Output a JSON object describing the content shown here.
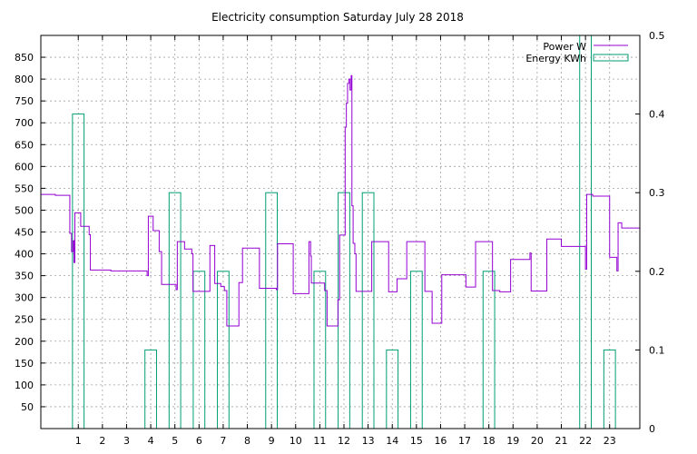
{
  "chart_data": {
    "type": "line",
    "title": "Electricity consumption Saturday July 28 2018",
    "grid": true,
    "legend_position": "top-right",
    "x_axis": {
      "range": [
        -0.55,
        24.25
      ],
      "ticks": [
        1,
        2,
        3,
        4,
        5,
        6,
        7,
        8,
        9,
        10,
        11,
        12,
        13,
        14,
        15,
        16,
        17,
        18,
        19,
        20,
        21,
        22,
        23
      ],
      "tick_labels": [
        "1",
        "2",
        "3",
        "4",
        "5",
        "6",
        "7",
        "8",
        "9",
        "10",
        "11",
        "12",
        "13",
        "14",
        "15",
        "16",
        "17",
        "18",
        "19",
        "20",
        "21",
        "22",
        "23"
      ]
    },
    "y_axis_left": {
      "range": [
        0,
        900
      ],
      "ticks": [
        50,
        100,
        150,
        200,
        250,
        300,
        350,
        400,
        450,
        500,
        550,
        600,
        650,
        700,
        750,
        800,
        850
      ],
      "tick_labels": [
        "50",
        "100",
        "150",
        "200",
        "250",
        "300",
        "350",
        "400",
        "450",
        "500",
        "550",
        "600",
        "650",
        "700",
        "750",
        "800",
        "850"
      ]
    },
    "y_axis_right": {
      "range": [
        0,
        0.5
      ],
      "ticks": [
        0,
        0.1,
        0.2,
        0.3,
        0.4,
        0.5
      ],
      "tick_labels": [
        "0",
        "0.1",
        "0.2",
        "0.3",
        "0.4",
        "0.5"
      ]
    },
    "series": [
      {
        "name": "Power W",
        "axis": "left",
        "style": "steps",
        "color": "#9400d3",
        "points": [
          [
            -0.55,
            536
          ],
          [
            0.05,
            536
          ],
          [
            0.05,
            534
          ],
          [
            0.65,
            534
          ],
          [
            0.65,
            447
          ],
          [
            0.72,
            447
          ],
          [
            0.72,
            405
          ],
          [
            0.78,
            405
          ],
          [
            0.78,
            430
          ],
          [
            0.82,
            430
          ],
          [
            0.82,
            380
          ],
          [
            0.86,
            380
          ],
          [
            0.86,
            494
          ],
          [
            1.1,
            494
          ],
          [
            1.1,
            463
          ],
          [
            1.45,
            463
          ],
          [
            1.45,
            444
          ],
          [
            1.5,
            444
          ],
          [
            1.5,
            363
          ],
          [
            2.35,
            363
          ],
          [
            2.35,
            361
          ],
          [
            3.85,
            361
          ],
          [
            3.85,
            350
          ],
          [
            3.9,
            350
          ],
          [
            3.9,
            486
          ],
          [
            4.1,
            486
          ],
          [
            4.1,
            453
          ],
          [
            4.35,
            453
          ],
          [
            4.35,
            405
          ],
          [
            4.45,
            405
          ],
          [
            4.45,
            330
          ],
          [
            5.05,
            330
          ],
          [
            5.05,
            318
          ],
          [
            5.1,
            318
          ],
          [
            5.1,
            428
          ],
          [
            5.4,
            428
          ],
          [
            5.4,
            411
          ],
          [
            5.7,
            411
          ],
          [
            5.7,
            400
          ],
          [
            5.75,
            400
          ],
          [
            5.75,
            314
          ],
          [
            6.45,
            314
          ],
          [
            6.45,
            419
          ],
          [
            6.65,
            419
          ],
          [
            6.65,
            332
          ],
          [
            6.9,
            332
          ],
          [
            6.9,
            325
          ],
          [
            7.05,
            325
          ],
          [
            7.05,
            316
          ],
          [
            7.15,
            316
          ],
          [
            7.15,
            235
          ],
          [
            7.65,
            235
          ],
          [
            7.65,
            334
          ],
          [
            7.8,
            334
          ],
          [
            7.8,
            413
          ],
          [
            8.5,
            413
          ],
          [
            8.5,
            321
          ],
          [
            9.2,
            321
          ],
          [
            9.2,
            318
          ],
          [
            9.25,
            318
          ],
          [
            9.25,
            423
          ],
          [
            9.9,
            423
          ],
          [
            9.9,
            309
          ],
          [
            10.55,
            309
          ],
          [
            10.55,
            428
          ],
          [
            10.62,
            428
          ],
          [
            10.62,
            395
          ],
          [
            10.65,
            395
          ],
          [
            10.65,
            333
          ],
          [
            11.2,
            333
          ],
          [
            11.2,
            316
          ],
          [
            11.3,
            316
          ],
          [
            11.3,
            235
          ],
          [
            11.75,
            235
          ],
          [
            11.75,
            295
          ],
          [
            11.82,
            295
          ],
          [
            11.82,
            443
          ],
          [
            12.05,
            443
          ],
          [
            12.05,
            690
          ],
          [
            12.1,
            690
          ],
          [
            12.1,
            745
          ],
          [
            12.15,
            745
          ],
          [
            12.15,
            790
          ],
          [
            12.2,
            790
          ],
          [
            12.2,
            800
          ],
          [
            12.25,
            800
          ],
          [
            12.25,
            775
          ],
          [
            12.3,
            775
          ],
          [
            12.3,
            808
          ],
          [
            12.33,
            808
          ],
          [
            12.33,
            510
          ],
          [
            12.38,
            510
          ],
          [
            12.38,
            424
          ],
          [
            12.45,
            424
          ],
          [
            12.45,
            400
          ],
          [
            12.5,
            400
          ],
          [
            12.5,
            314
          ],
          [
            13.15,
            314
          ],
          [
            13.15,
            428
          ],
          [
            13.85,
            428
          ],
          [
            13.85,
            313
          ],
          [
            14.2,
            313
          ],
          [
            14.2,
            343
          ],
          [
            14.6,
            343
          ],
          [
            14.6,
            428
          ],
          [
            15.35,
            428
          ],
          [
            15.35,
            314
          ],
          [
            15.65,
            314
          ],
          [
            15.65,
            241
          ],
          [
            16.05,
            241
          ],
          [
            16.05,
            352
          ],
          [
            17.05,
            352
          ],
          [
            17.05,
            324
          ],
          [
            17.45,
            324
          ],
          [
            17.45,
            428
          ],
          [
            18.15,
            428
          ],
          [
            18.15,
            316
          ],
          [
            18.45,
            316
          ],
          [
            18.45,
            313
          ],
          [
            18.9,
            313
          ],
          [
            18.9,
            387
          ],
          [
            19.7,
            387
          ],
          [
            19.7,
            402
          ],
          [
            19.75,
            402
          ],
          [
            19.75,
            315
          ],
          [
            20.4,
            315
          ],
          [
            20.4,
            434
          ],
          [
            21.0,
            434
          ],
          [
            21.0,
            417
          ],
          [
            22.0,
            417
          ],
          [
            22.0,
            365
          ],
          [
            22.05,
            365
          ],
          [
            22.05,
            536
          ],
          [
            22.3,
            536
          ],
          [
            22.3,
            532
          ],
          [
            23.0,
            532
          ],
          [
            23.0,
            392
          ],
          [
            23.3,
            392
          ],
          [
            23.3,
            361
          ],
          [
            23.35,
            361
          ],
          [
            23.35,
            471
          ],
          [
            23.5,
            471
          ],
          [
            23.5,
            459
          ],
          [
            24.25,
            459
          ]
        ]
      },
      {
        "name": "Energy KWh",
        "axis": "right",
        "style": "boxes",
        "color": "#009e73",
        "bars": [
          {
            "x": 1,
            "value": 0.4
          },
          {
            "x": 4,
            "value": 0.1
          },
          {
            "x": 5,
            "value": 0.3
          },
          {
            "x": 6,
            "value": 0.2
          },
          {
            "x": 7,
            "value": 0.2
          },
          {
            "x": 9,
            "value": 0.3
          },
          {
            "x": 11,
            "value": 0.2
          },
          {
            "x": 12,
            "value": 0.3
          },
          {
            "x": 13,
            "value": 0.3
          },
          {
            "x": 14,
            "value": 0.1
          },
          {
            "x": 15,
            "value": 0.2
          },
          {
            "x": 18,
            "value": 0.2
          },
          {
            "x": 22,
            "value": 0.5
          },
          {
            "x": 23,
            "value": 0.1
          }
        ]
      }
    ]
  }
}
